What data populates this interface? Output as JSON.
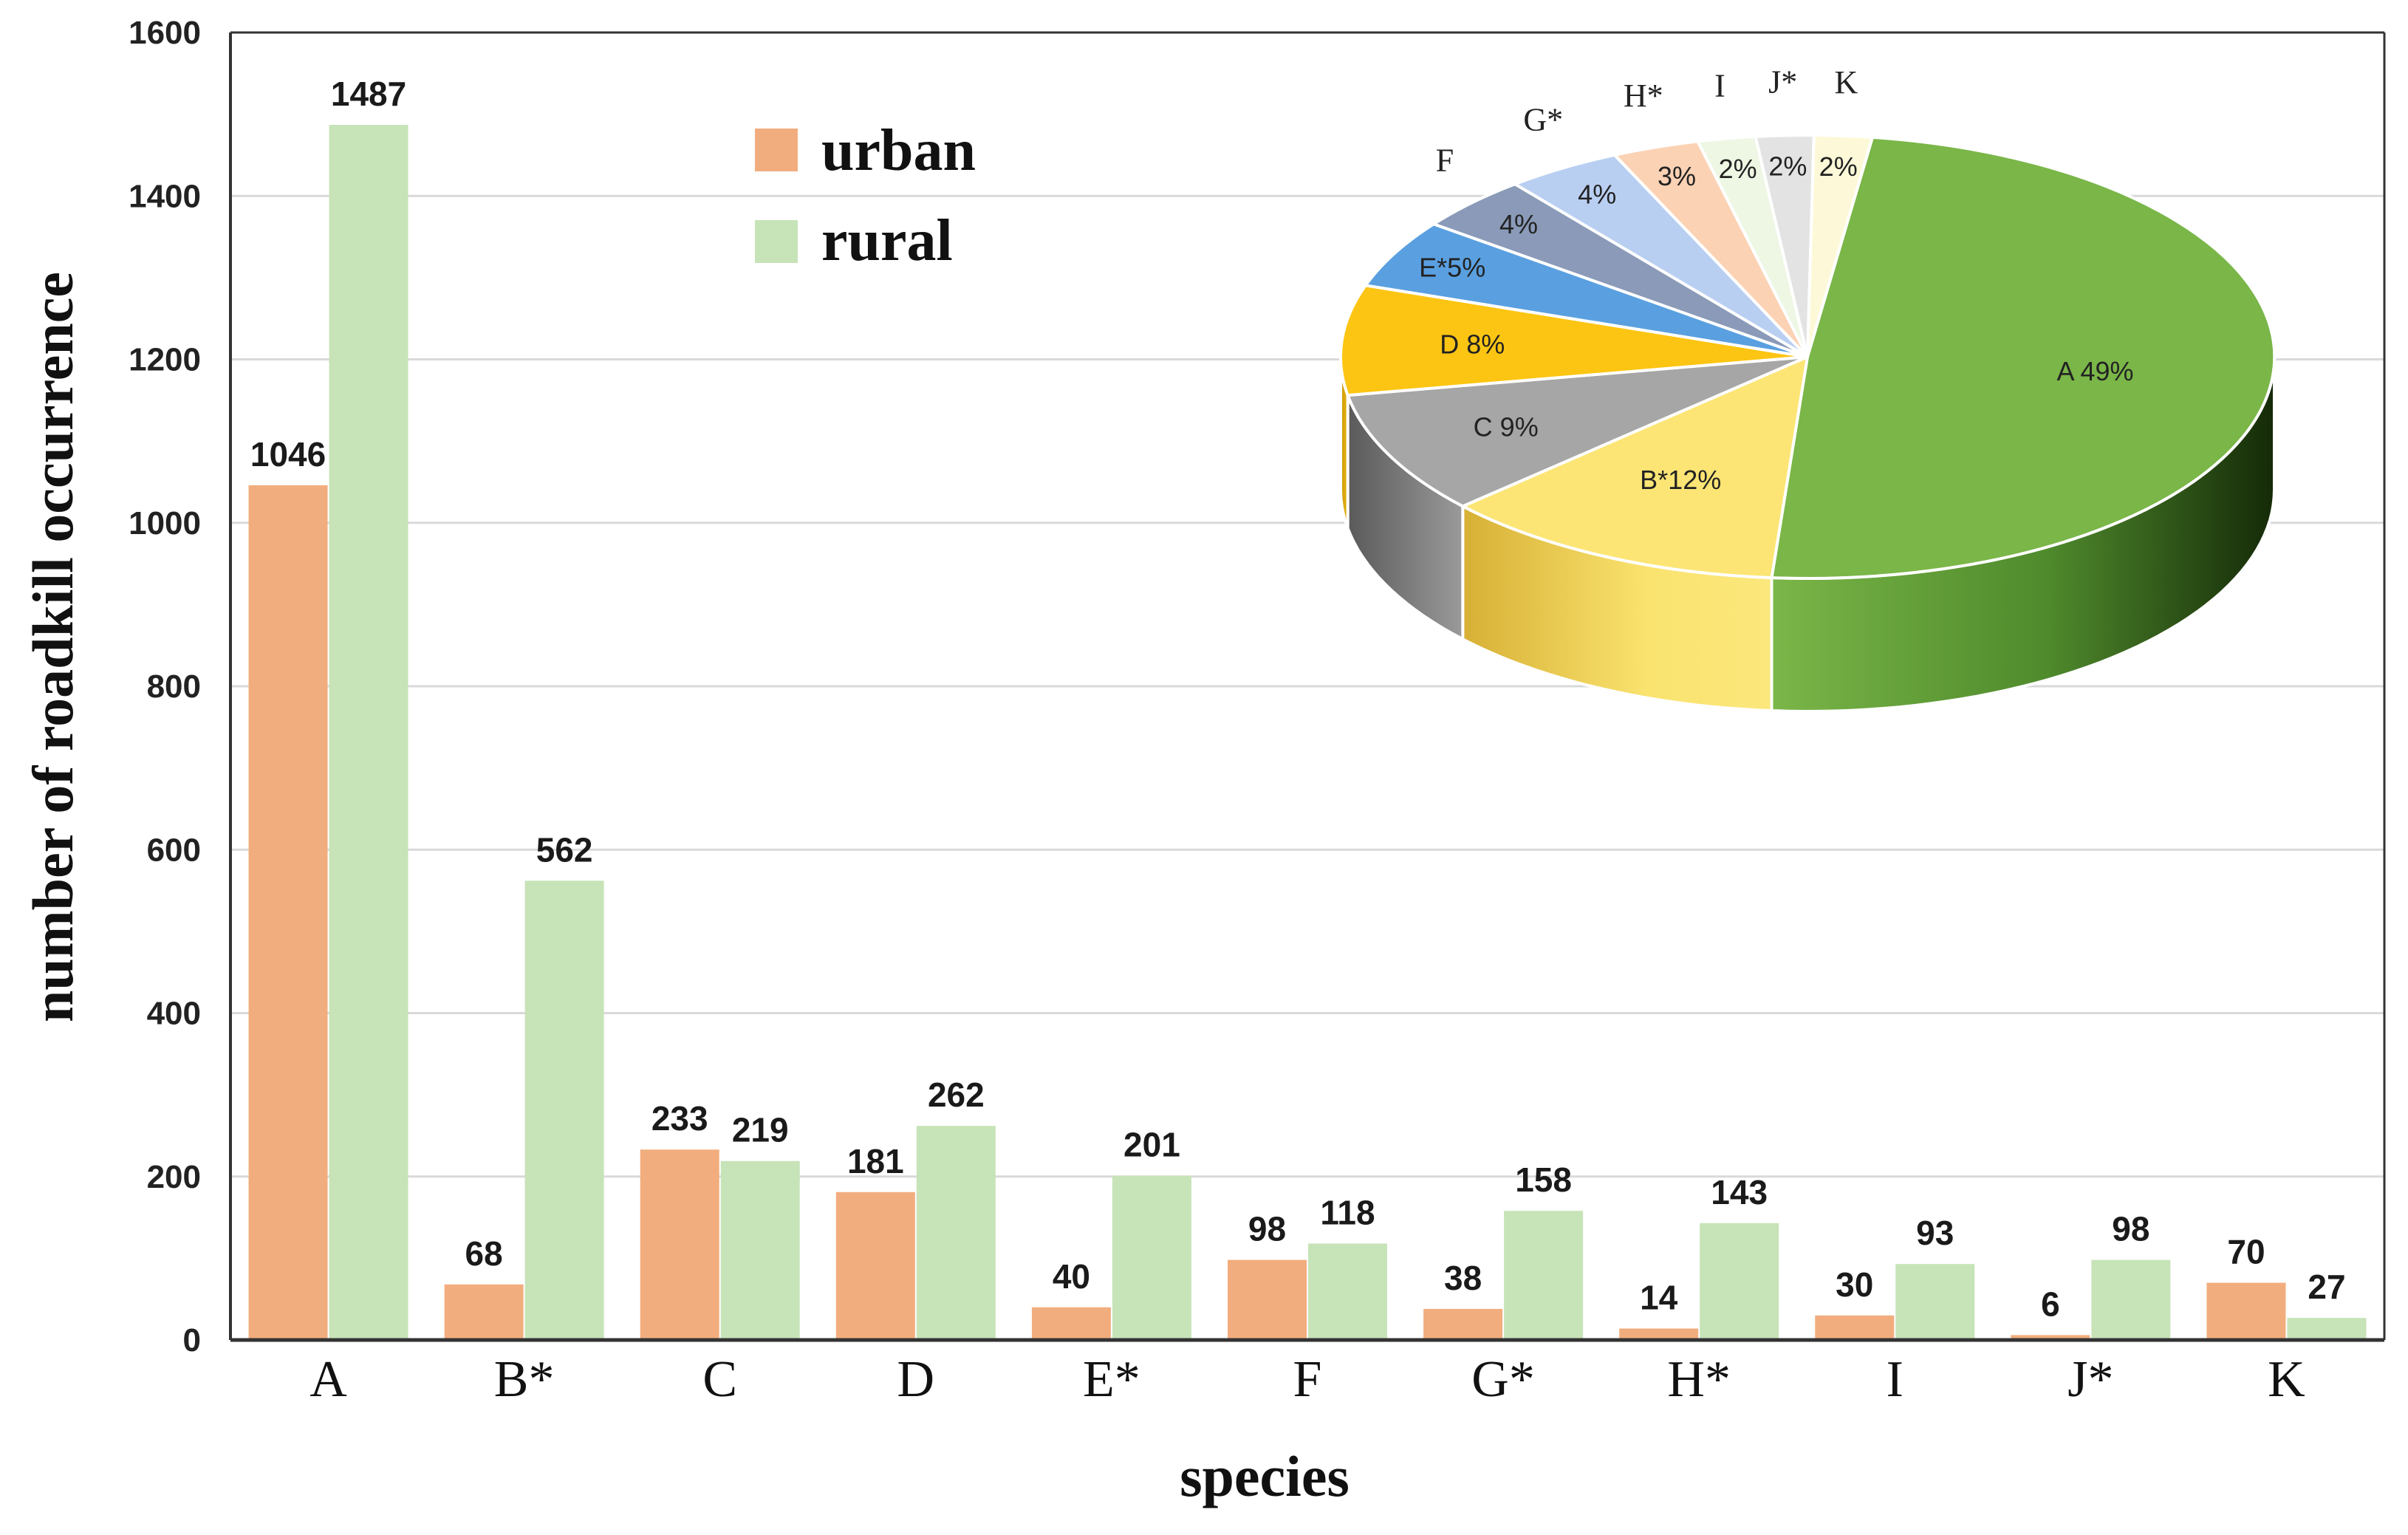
{
  "colors": {
    "urban": "#f2ad7e",
    "rural": "#c7e3b8",
    "grid": "#d9d9d9",
    "axis": "#333333"
  },
  "chart_data": [
    {
      "type": "bar",
      "title": "",
      "xlabel": "species",
      "ylabel": "number of roadkill occurrence",
      "ylim": [
        0,
        1600
      ],
      "yticks": [
        0,
        200,
        400,
        600,
        800,
        1000,
        1200,
        1400,
        1600
      ],
      "categories": [
        "A",
        "B*",
        "C",
        "D",
        "E*",
        "F",
        "G*",
        "H*",
        "I",
        "J*",
        "K"
      ],
      "series": [
        {
          "name": "urban",
          "color": "#f2ad7e",
          "values": [
            1046,
            68,
            233,
            181,
            40,
            98,
            38,
            14,
            30,
            6,
            70
          ]
        },
        {
          "name": "rural",
          "color": "#c7e3b8",
          "values": [
            1487,
            562,
            219,
            262,
            201,
            118,
            158,
            143,
            93,
            98,
            27
          ]
        }
      ],
      "legend": {
        "position": "top-center",
        "entries": [
          "urban",
          "rural"
        ]
      }
    },
    {
      "type": "pie",
      "style": "3d",
      "slices": [
        {
          "label": "A",
          "percent": 49,
          "text": "A 49%",
          "color": "#7ab648"
        },
        {
          "label": "B*",
          "percent": 12,
          "text": "B*12%",
          "color": "#fce575"
        },
        {
          "label": "C",
          "percent": 9,
          "text": "C 9%",
          "color": "#a6a6a6"
        },
        {
          "label": "D",
          "percent": 8,
          "text": "D 8%",
          "color": "#fcc513"
        },
        {
          "label": "E*",
          "percent": 5,
          "text": "E*5%",
          "color": "#5aa0e0"
        },
        {
          "label": "F",
          "percent": 4,
          "text": "4%",
          "outer": "F",
          "color": "#8a9ab8"
        },
        {
          "label": "G*",
          "percent": 4,
          "text": "4%",
          "outer": "G*",
          "color": "#b9cff2"
        },
        {
          "label": "H*",
          "percent": 3,
          "text": "3%",
          "outer": "H*",
          "color": "#fcd2b4"
        },
        {
          "label": "I",
          "percent": 2,
          "text": "2%",
          "outer": "I",
          "color": "#eef7e4"
        },
        {
          "label": "J*",
          "percent": 2,
          "text": "2%",
          "outer": "J*",
          "color": "#e3e3e3"
        },
        {
          "label": "K",
          "percent": 2,
          "text": "2%",
          "outer": "K",
          "color": "#fdf9d8"
        }
      ]
    }
  ]
}
